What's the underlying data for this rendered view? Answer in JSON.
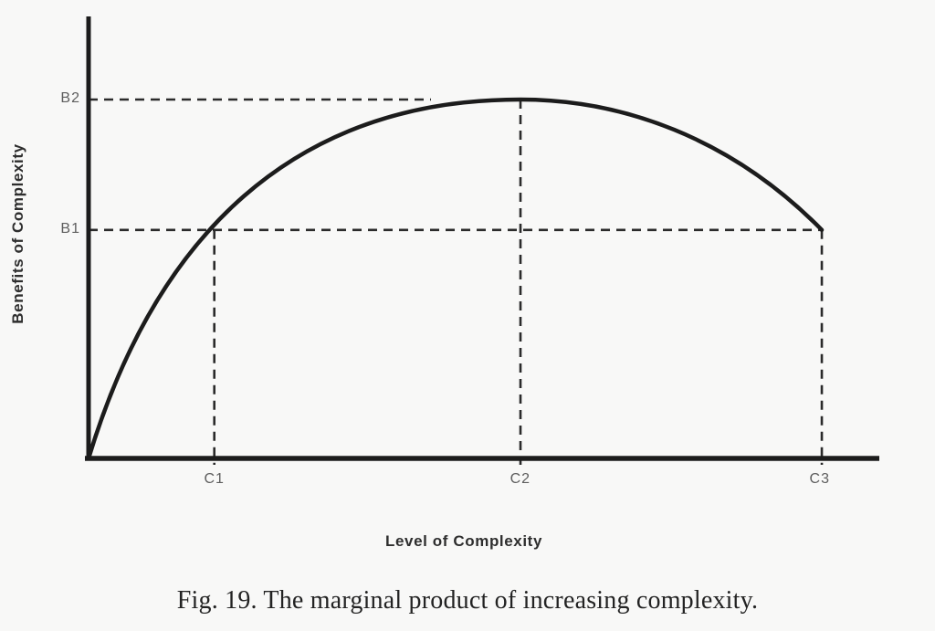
{
  "figure": {
    "caption": "Fig. 19. The marginal product of increasing complexity."
  },
  "colors": {
    "background": "#f8f8f7",
    "ink": "#1c1c1c",
    "dash_line": "#2b2b2b",
    "tick_label": "#5e5e5e",
    "axis_title": "#2e2e2e",
    "caption_text": "#232323"
  },
  "chart_data": {
    "type": "line",
    "title": "Fig. 19. The marginal product of increasing complexity.",
    "xlabel": "Level of Complexity",
    "ylabel": "Benefits of Complexity",
    "grid": false,
    "legend": false,
    "x_axis": {
      "range": [
        0,
        1
      ],
      "ticks": [
        {
          "label": "C1",
          "value": 0.159
        },
        {
          "label": "C2",
          "value": 0.546
        },
        {
          "label": "C3",
          "value": 0.927
        }
      ]
    },
    "y_axis": {
      "range": [
        0,
        1
      ],
      "ticks": [
        {
          "label": "B1",
          "value": 0.517
        },
        {
          "label": "B2",
          "value": 0.812
        }
      ]
    },
    "series": [
      {
        "name": "benefit-of-complexity-curve",
        "points": [
          [
            0.0,
            0.0
          ],
          [
            0.05,
            0.2
          ],
          [
            0.1,
            0.37
          ],
          [
            0.159,
            0.517
          ],
          [
            0.25,
            0.67
          ],
          [
            0.35,
            0.76
          ],
          [
            0.45,
            0.805
          ],
          [
            0.546,
            0.812
          ],
          [
            0.65,
            0.8
          ],
          [
            0.75,
            0.745
          ],
          [
            0.85,
            0.645
          ],
          [
            0.927,
            0.517
          ]
        ]
      }
    ],
    "curve_bezier": {
      "start": [
        0.0,
        0.0
      ],
      "segments": [
        {
          "c1": [
            0.0843,
            0.5
          ],
          "c2": [
            0.2575,
            0.812
          ],
          "end": [
            0.5462,
            0.812
          ]
        },
        {
          "c1": [
            0.6732,
            0.812
          ],
          "c2": [
            0.8118,
            0.7273
          ],
          "end": [
            0.9273,
            0.517
          ]
        }
      ]
    },
    "reference_lines": [
      {
        "id": "b2-horizontal",
        "orientation": "horizontal",
        "y": 0.812,
        "x_from": 0.0,
        "x_to": 0.433
      },
      {
        "id": "b1-horizontal",
        "orientation": "horizontal",
        "y": 0.517,
        "x_from": 0.0,
        "x_to": 0.9273
      },
      {
        "id": "c1-vertical",
        "orientation": "vertical",
        "x": 0.159,
        "y_from": 0.517,
        "y_to": 0.0
      },
      {
        "id": "c2-vertical",
        "orientation": "vertical",
        "x": 0.5462,
        "y_from": 0.812,
        "y_to": 0.0
      },
      {
        "id": "c3-vertical",
        "orientation": "vertical",
        "x": 0.9273,
        "y_from": 0.517,
        "y_to": 0.0
      }
    ],
    "annotations": {
      "peak": {
        "x": 0.546,
        "y": 0.812,
        "meaning": "maximum benefit B2 reached at complexity C2"
      },
      "end": {
        "x": 0.927,
        "y": 0.517,
        "meaning": "benefit declines back to B1 at complexity C3"
      }
    }
  }
}
